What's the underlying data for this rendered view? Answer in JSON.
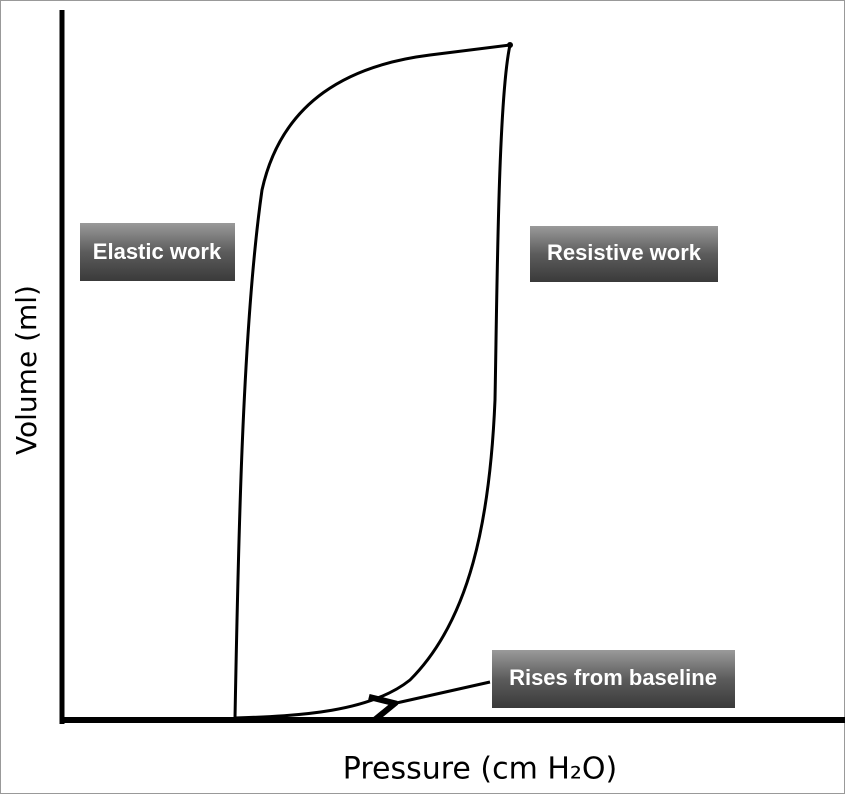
{
  "annotations": {
    "elastic": "Elastic work",
    "resistive": "Resistive work",
    "baseline": "Rises from baseline"
  },
  "axes": {
    "y_label": "Volume (ml)",
    "x_label": "Pressure (cm H₂O)"
  }
}
